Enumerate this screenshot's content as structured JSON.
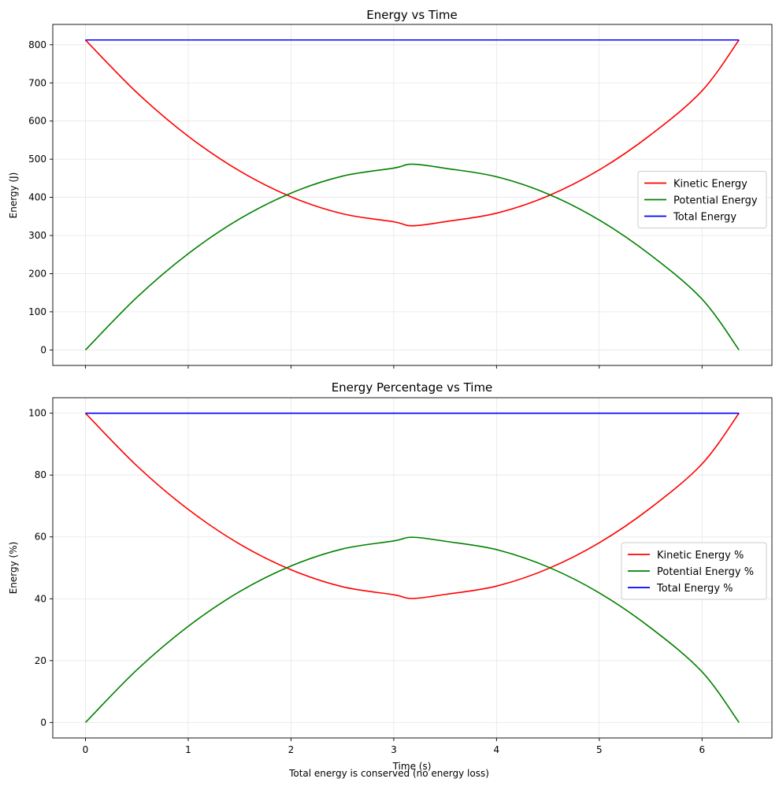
{
  "footnote": "Total energy is conserved (no energy loss)",
  "chart_data": [
    {
      "type": "line",
      "title": "Energy vs Time",
      "xlabel": "",
      "ylabel": "Energy (J)",
      "xlim": [
        -0.318,
        6.68
      ],
      "ylim": [
        -40.6,
        853.3
      ],
      "xticks": [
        0,
        1,
        2,
        3,
        4,
        5,
        6
      ],
      "xtick_labels_visible": false,
      "yticks": [
        0,
        100,
        200,
        300,
        400,
        500,
        600,
        700,
        800
      ],
      "grid": true,
      "legend_position": "center-right",
      "series": [
        {
          "name": "Kinetic Energy",
          "color": "#ff0000",
          "kind": "ke",
          "x": [
            0,
            0.5,
            1,
            1.5,
            2,
            2.5,
            3,
            3.18,
            3.5,
            4,
            4.5,
            5,
            5.5,
            6,
            6.36
          ],
          "y": [
            812.5,
            674.7,
            560.2,
            469.1,
            401.4,
            357.0,
            335.9,
            325.5,
            336.3,
            358.5,
            403.5,
            472.0,
            563.9,
            679.2,
            812.5
          ]
        },
        {
          "name": "Potential Energy",
          "color": "#008000",
          "kind": "pe",
          "x": [
            0,
            0.5,
            1,
            1.5,
            2,
            2.5,
            3,
            3.18,
            3.5,
            4,
            4.5,
            5,
            5.5,
            6,
            6.36
          ],
          "y": [
            0,
            137.8,
            252.3,
            343.4,
            411.1,
            455.5,
            476.6,
            487.0,
            476.2,
            454.0,
            409.0,
            340.5,
            248.6,
            133.3,
            0
          ]
        },
        {
          "name": "Total Energy",
          "color": "#0000ff",
          "kind": "total",
          "x": [
            0,
            6.36
          ],
          "y": [
            812.5,
            812.5
          ]
        }
      ]
    },
    {
      "type": "line",
      "title": "Energy Percentage vs Time",
      "xlabel": "Time (s)",
      "ylabel": "Energy (%)",
      "xlim": [
        -0.318,
        6.68
      ],
      "ylim": [
        -5,
        105
      ],
      "xticks": [
        0,
        1,
        2,
        3,
        4,
        5,
        6
      ],
      "xtick_labels_visible": true,
      "yticks": [
        0,
        20,
        40,
        60,
        80,
        100
      ],
      "grid": true,
      "legend_position": "center-right",
      "series": [
        {
          "name": "Kinetic Energy %",
          "color": "#ff0000",
          "kind": "ke",
          "x": [
            0,
            0.5,
            1,
            1.5,
            2,
            2.5,
            3,
            3.18,
            3.5,
            4,
            4.5,
            5,
            5.5,
            6,
            6.36
          ],
          "y": [
            100,
            83.0,
            68.9,
            57.7,
            49.4,
            43.9,
            41.3,
            40.1,
            41.4,
            44.1,
            49.7,
            58.1,
            69.4,
            83.6,
            100
          ]
        },
        {
          "name": "Potential Energy %",
          "color": "#008000",
          "kind": "pe",
          "x": [
            0,
            0.5,
            1,
            1.5,
            2,
            2.5,
            3,
            3.18,
            3.5,
            4,
            4.5,
            5,
            5.5,
            6,
            6.36
          ],
          "y": [
            0,
            17.0,
            31.1,
            42.3,
            50.6,
            56.1,
            58.7,
            59.9,
            58.6,
            55.9,
            50.3,
            41.9,
            30.6,
            16.4,
            0
          ]
        },
        {
          "name": "Total Energy %",
          "color": "#0000ff",
          "kind": "total",
          "x": [
            0,
            6.36
          ],
          "y": [
            100,
            100
          ]
        }
      ]
    }
  ]
}
